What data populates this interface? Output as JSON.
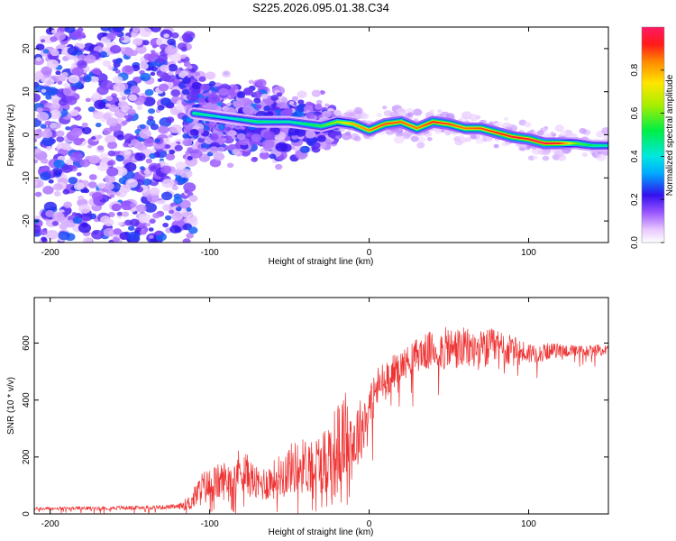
{
  "title": "S225.2026.095.01.38.C34",
  "chart_data": [
    {
      "type": "heatmap",
      "xlabel": "Height of straight line (km)",
      "ylabel": "Frequency (Hz)",
      "xlim": [
        -210,
        150
      ],
      "ylim": [
        -25,
        25
      ],
      "xticks": [
        -200,
        -100,
        0,
        100
      ],
      "yticks": [
        20,
        10,
        0,
        -10,
        -20
      ],
      "colorbar": {
        "label": "Normalized spectral amplitude",
        "range": [
          0,
          1
        ],
        "ticks": [
          0.0,
          0.2,
          0.4,
          0.6,
          0.8
        ]
      },
      "ridge": {
        "description_x": [
          -110,
          -90,
          -70,
          -50,
          -30,
          -20,
          -10,
          0,
          10,
          20,
          30,
          40,
          50,
          60,
          70,
          80,
          90,
          100,
          110,
          120,
          130,
          140,
          150
        ],
        "frequency": [
          5,
          4,
          3,
          3,
          2,
          3,
          2.5,
          1,
          2.5,
          3,
          1.5,
          3,
          2.5,
          1.5,
          1.5,
          0.5,
          -0.5,
          -1,
          -2,
          -2,
          -2,
          -2.5,
          -2.5
        ],
        "amplitude": [
          0.5,
          0.4,
          0.5,
          0.45,
          0.55,
          0.65,
          0.8,
          0.85,
          0.9,
          0.88,
          0.85,
          0.92,
          0.9,
          0.85,
          0.88,
          0.92,
          0.95,
          0.95,
          0.98,
          0.92,
          0.6,
          0.5,
          0.45
        ]
      }
    },
    {
      "type": "line",
      "xlabel": "Height of straight line (km)",
      "ylabel": "SNR (10 * v/v)",
      "xlim": [
        -210,
        150
      ],
      "ylim": [
        0,
        760
      ],
      "xticks": [
        -200,
        -100,
        0,
        100
      ],
      "yticks": [
        0,
        200,
        400,
        600
      ],
      "color": "#ee3333",
      "series": [
        {
          "name": "SNR",
          "x": [
            -210,
            -180,
            -150,
            -120,
            -112,
            -105,
            -90,
            -80,
            -70,
            -60,
            -50,
            -40,
            -30,
            -25,
            -20,
            -15,
            -10,
            -5,
            0,
            5,
            10,
            15,
            20,
            25,
            30,
            40,
            50,
            60,
            70,
            80,
            90,
            100,
            110,
            120,
            130,
            140,
            150
          ],
          "y": [
            18,
            20,
            22,
            25,
            40,
            90,
            120,
            160,
            100,
            120,
            160,
            170,
            180,
            200,
            220,
            280,
            250,
            300,
            380,
            440,
            470,
            500,
            520,
            540,
            560,
            575,
            580,
            580,
            575,
            585,
            570,
            565,
            570,
            575,
            570,
            575,
            575
          ],
          "noise": [
            6,
            6,
            7,
            8,
            30,
            60,
            70,
            80,
            60,
            70,
            90,
            100,
            110,
            150,
            170,
            150,
            140,
            110,
            90,
            80,
            70,
            60,
            55,
            55,
            60,
            70,
            80,
            75,
            70,
            70,
            55,
            40,
            30,
            25,
            22,
            20,
            20
          ]
        }
      ]
    }
  ]
}
